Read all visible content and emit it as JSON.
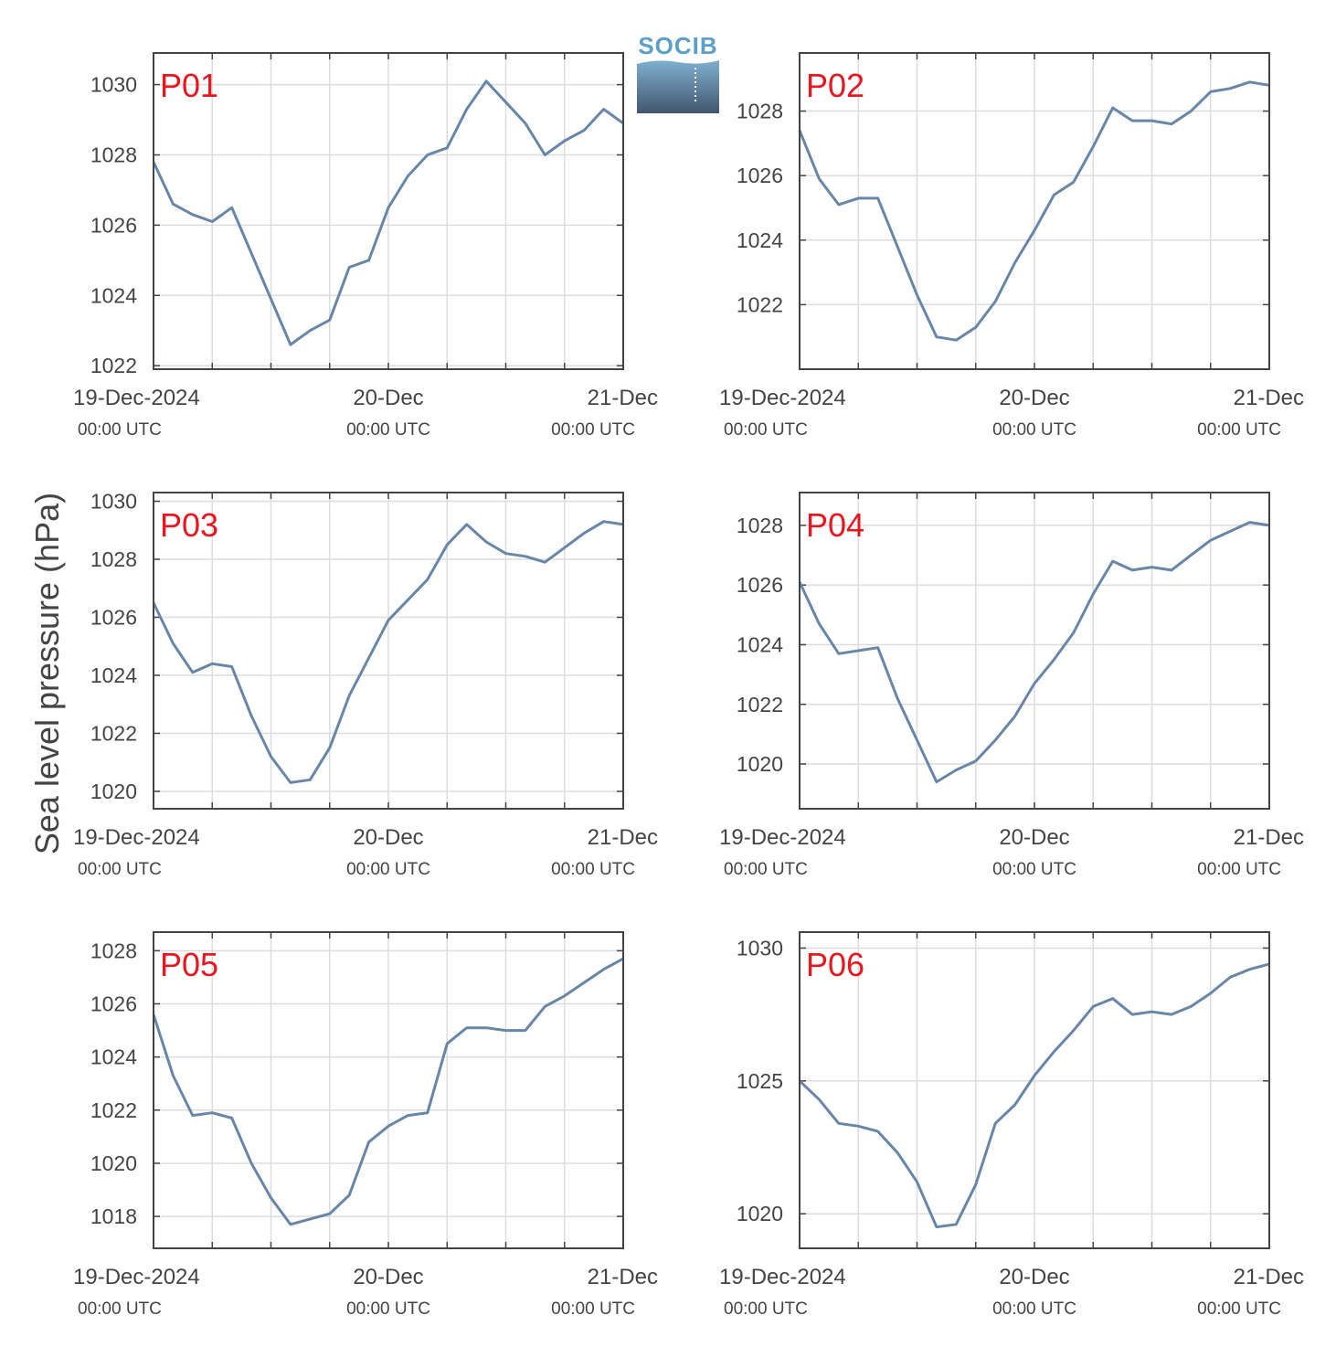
{
  "ylabel": "Sea level pressure (hPa)",
  "logo": {
    "text": "SOCIB"
  },
  "colors": {
    "line": "#6886a8",
    "panel_label": "#e8161f",
    "axis": "#444444",
    "grid": "#dddddd"
  },
  "x_ticks": [
    {
      "date": "19-Dec-2024",
      "time": "00:00 UTC"
    },
    {
      "date": "20-Dec",
      "time": "00:00 UTC"
    },
    {
      "date": "21-Dec",
      "time": "00:00 UTC"
    }
  ],
  "chart_data": [
    {
      "type": "line",
      "title": "P01",
      "xlim": [
        "2024-12-19 00:00",
        "2024-12-21 00:00"
      ],
      "ylim": [
        1021.9,
        1030.9
      ],
      "yticks": [
        1022,
        1024,
        1026,
        1028,
        1030
      ],
      "grid": true,
      "series": [
        {
          "x_hours": [
            0,
            2,
            4,
            6,
            8,
            10,
            12,
            14,
            16,
            18,
            20,
            22,
            24,
            26,
            28,
            30,
            32,
            34,
            36,
            38,
            40,
            42,
            44,
            46,
            48
          ],
          "y": [
            1027.8,
            1026.6,
            1026.3,
            1026.1,
            1026.5,
            1025.2,
            1023.9,
            1022.6,
            1023.0,
            1023.3,
            1024.8,
            1025.0,
            1026.5,
            1027.4,
            1028.0,
            1028.2,
            1029.3,
            1030.1,
            1029.5,
            1028.9,
            1028.0,
            1028.4,
            1028.7,
            1029.3,
            1028.9
          ]
        }
      ]
    },
    {
      "type": "line",
      "title": "P02",
      "xlim": [
        "2024-12-19 00:00",
        "2024-12-21 00:00"
      ],
      "ylim": [
        1020.0,
        1029.8
      ],
      "yticks": [
        1022,
        1024,
        1026,
        1028
      ],
      "grid": true,
      "series": [
        {
          "x_hours": [
            0,
            2,
            4,
            6,
            8,
            10,
            12,
            14,
            16,
            18,
            20,
            22,
            24,
            26,
            28,
            30,
            32,
            34,
            36,
            38,
            40,
            42,
            44,
            46,
            48
          ],
          "y": [
            1027.4,
            1025.9,
            1025.1,
            1025.3,
            1025.3,
            1023.8,
            1022.3,
            1021.0,
            1020.9,
            1021.3,
            1022.1,
            1023.3,
            1024.3,
            1025.4,
            1025.8,
            1026.9,
            1028.1,
            1027.7,
            1027.7,
            1027.6,
            1028.0,
            1028.6,
            1028.7,
            1028.9,
            1028.8
          ]
        }
      ]
    },
    {
      "type": "line",
      "title": "P03",
      "xlim": [
        "2024-12-19 00:00",
        "2024-12-21 00:00"
      ],
      "ylim": [
        1019.4,
        1030.3
      ],
      "yticks": [
        1020,
        1022,
        1024,
        1026,
        1028,
        1030
      ],
      "grid": true,
      "series": [
        {
          "x_hours": [
            0,
            2,
            4,
            6,
            8,
            10,
            12,
            14,
            16,
            18,
            20,
            22,
            24,
            26,
            28,
            30,
            32,
            34,
            36,
            38,
            40,
            42,
            44,
            46,
            48
          ],
          "y": [
            1026.5,
            1025.1,
            1024.1,
            1024.4,
            1024.3,
            1022.6,
            1021.2,
            1020.3,
            1020.4,
            1021.5,
            1023.3,
            1024.6,
            1025.9,
            1026.6,
            1027.3,
            1028.5,
            1029.2,
            1028.6,
            1028.2,
            1028.1,
            1027.9,
            1028.4,
            1028.9,
            1029.3,
            1029.2
          ]
        }
      ]
    },
    {
      "type": "line",
      "title": "P04",
      "xlim": [
        "2024-12-19 00:00",
        "2024-12-21 00:00"
      ],
      "ylim": [
        1018.5,
        1029.1
      ],
      "yticks": [
        1020,
        1022,
        1024,
        1026,
        1028
      ],
      "grid": true,
      "series": [
        {
          "x_hours": [
            0,
            2,
            4,
            6,
            8,
            10,
            12,
            14,
            16,
            18,
            20,
            22,
            24,
            26,
            28,
            30,
            32,
            34,
            36,
            38,
            40,
            42,
            44,
            46,
            48
          ],
          "y": [
            1026.1,
            1024.7,
            1023.7,
            1023.8,
            1023.9,
            1022.2,
            1020.8,
            1019.4,
            1019.8,
            1020.1,
            1020.8,
            1021.6,
            1022.7,
            1023.5,
            1024.4,
            1025.7,
            1026.8,
            1026.5,
            1026.6,
            1026.5,
            1027.0,
            1027.5,
            1027.8,
            1028.1,
            1028.0
          ]
        }
      ]
    },
    {
      "type": "line",
      "title": "P05",
      "xlim": [
        "2024-12-19 00:00",
        "2024-12-21 00:00"
      ],
      "ylim": [
        1016.8,
        1028.7
      ],
      "yticks": [
        1018,
        1020,
        1022,
        1024,
        1026,
        1028
      ],
      "grid": true,
      "series": [
        {
          "x_hours": [
            0,
            2,
            4,
            6,
            8,
            10,
            12,
            14,
            16,
            18,
            20,
            22,
            24,
            26,
            28,
            30,
            32,
            34,
            36,
            38,
            40,
            42,
            44,
            46,
            48
          ],
          "y": [
            1025.6,
            1023.3,
            1021.8,
            1021.9,
            1021.7,
            1020.0,
            1018.7,
            1017.7,
            1017.9,
            1018.1,
            1018.8,
            1020.8,
            1021.4,
            1021.8,
            1021.9,
            1024.5,
            1025.1,
            1025.1,
            1025.0,
            1025.0,
            1025.9,
            1026.3,
            1026.8,
            1027.3,
            1027.7
          ]
        }
      ]
    },
    {
      "type": "line",
      "title": "P06",
      "xlim": [
        "2024-12-19 00:00",
        "2024-12-21 00:00"
      ],
      "ylim": [
        1018.7,
        1030.6
      ],
      "yticks": [
        1020,
        1025,
        1030
      ],
      "grid": true,
      "series": [
        {
          "x_hours": [
            0,
            2,
            4,
            6,
            8,
            10,
            12,
            14,
            16,
            18,
            20,
            22,
            24,
            26,
            28,
            30,
            32,
            34,
            36,
            38,
            40,
            42,
            44,
            46,
            48
          ],
          "y": [
            1025.0,
            1024.3,
            1023.4,
            1023.3,
            1023.1,
            1022.3,
            1021.2,
            1019.5,
            1019.6,
            1021.1,
            1023.4,
            1024.1,
            1025.2,
            1026.1,
            1026.9,
            1027.8,
            1028.1,
            1027.5,
            1027.6,
            1027.5,
            1027.8,
            1028.3,
            1028.9,
            1029.2,
            1029.4
          ]
        }
      ]
    }
  ]
}
